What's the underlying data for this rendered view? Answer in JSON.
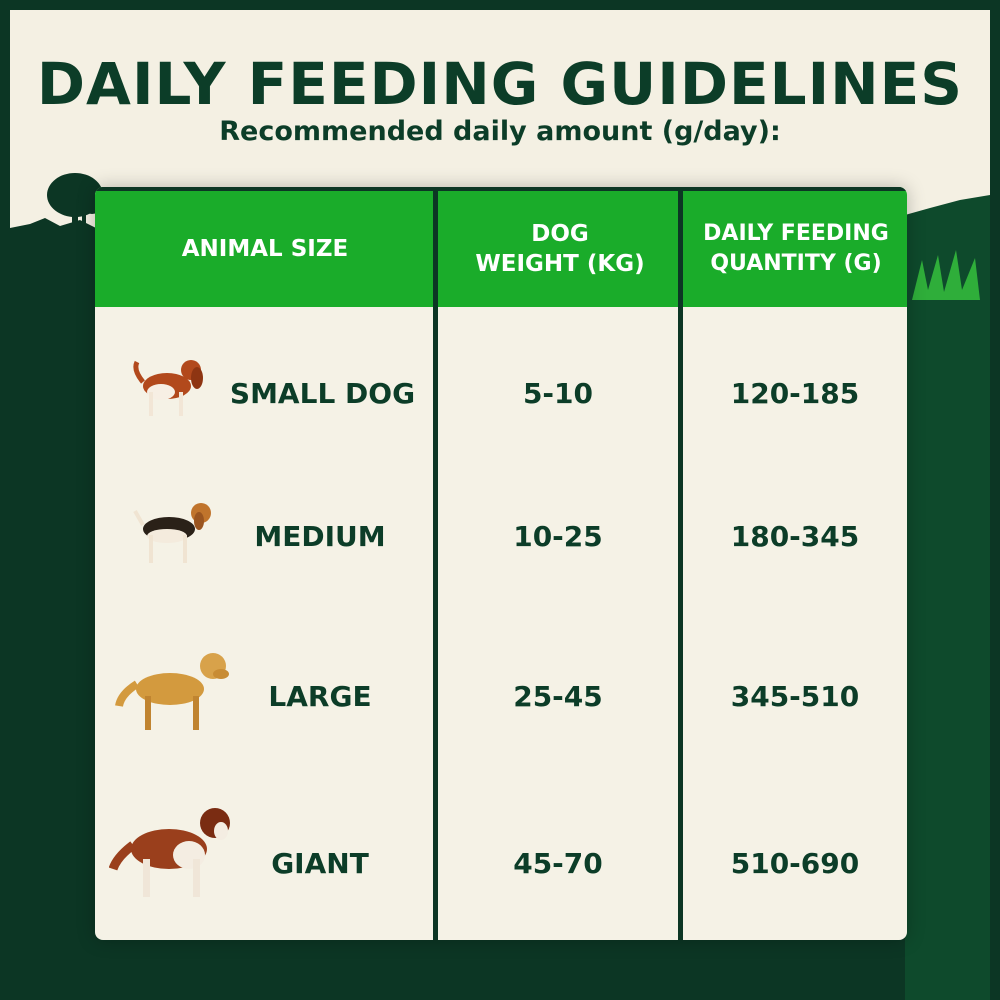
{
  "header": {
    "title": "DAILY FEEDING GUIDELINES",
    "subtitle": "Recommended daily amount (g/day):"
  },
  "colors": {
    "background": "#0c3624",
    "cream": "#f4f0e3",
    "header_green": "#1aac2a",
    "text": "#0c3d28"
  },
  "table": {
    "columns": [
      "ANIMAL SIZE",
      "DOG WEIGHT (KG)",
      "DAILY FEEDING QUANTITY (G)"
    ],
    "columns_lines": [
      [
        "ANIMAL SIZE"
      ],
      [
        "DOG",
        "WEIGHT (KG)"
      ],
      [
        "DAILY FEEDING",
        "QUANTITY (G)"
      ]
    ],
    "rows": [
      {
        "size": "SMALL DOG",
        "weight": "5-10",
        "quantity": "120-185",
        "icon": "cavalier-spaniel-image"
      },
      {
        "size": "MEDIUM",
        "weight": "10-25",
        "quantity": "180-345",
        "icon": "beagle-image"
      },
      {
        "size": "LARGE",
        "weight": "25-45",
        "quantity": "345-510",
        "icon": "golden-retriever-image"
      },
      {
        "size": "GIANT",
        "weight": "45-70",
        "quantity": "510-690",
        "icon": "saint-bernard-image"
      }
    ]
  }
}
